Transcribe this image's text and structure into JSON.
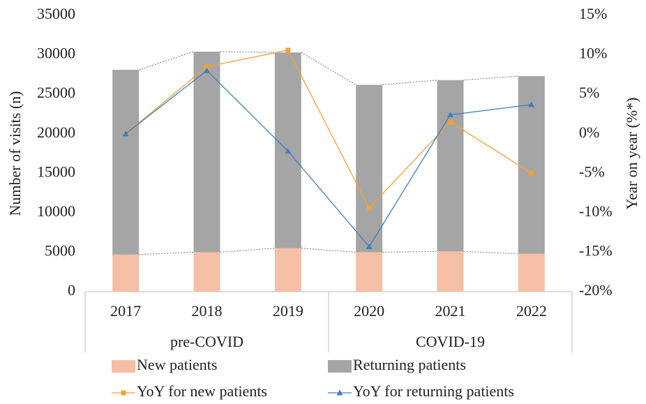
{
  "chart_data": {
    "type": "bar",
    "stacked": true,
    "y_label": "Number of visits (n)",
    "y2_label": "Year on year (%*)",
    "categories": [
      "2017",
      "2018",
      "2019",
      "2020",
      "2021",
      "2022"
    ],
    "groups": [
      {
        "label": "pre-COVID",
        "size": 3
      },
      {
        "label": "COVID-19",
        "size": 3
      }
    ],
    "series": [
      {
        "name": "New patients",
        "type": "bar",
        "color": "#f5bfa6",
        "values": [
          4700,
          5000,
          5500,
          5000,
          5100,
          4800
        ]
      },
      {
        "name": "Returning patients",
        "type": "bar",
        "color": "#a5a5a5",
        "values": [
          23400,
          25400,
          24800,
          21200,
          21700,
          22500
        ]
      },
      {
        "name": "YoY for new patients",
        "type": "line",
        "axis": "y2",
        "color": "#f5a030",
        "marker": "square",
        "values": [
          0,
          8.5,
          10.6,
          -9.4,
          1.5,
          -5.0
        ]
      },
      {
        "name": "YoY for returning patients",
        "type": "line",
        "axis": "y2",
        "color": "#3d7fc4",
        "marker": "triangle",
        "values": [
          0,
          8.0,
          -2.2,
          -14.3,
          2.4,
          3.7
        ]
      }
    ],
    "ylim": [
      0,
      35000
    ],
    "yticks": [
      0,
      5000,
      10000,
      15000,
      20000,
      25000,
      30000,
      35000
    ],
    "y2lim": [
      -20,
      15
    ],
    "y2ticks": [
      {
        "value": -20,
        "label": "-20%"
      },
      {
        "value": -15,
        "label": "-15%"
      },
      {
        "value": -10,
        "label": "-10%"
      },
      {
        "value": -5,
        "label": "-5%"
      },
      {
        "value": 0,
        "label": "0%"
      },
      {
        "value": 5,
        "label": "5%"
      },
      {
        "value": 10,
        "label": "10%"
      },
      {
        "value": 15,
        "label": "15%"
      }
    ],
    "grid": false,
    "legend": "bottom"
  }
}
